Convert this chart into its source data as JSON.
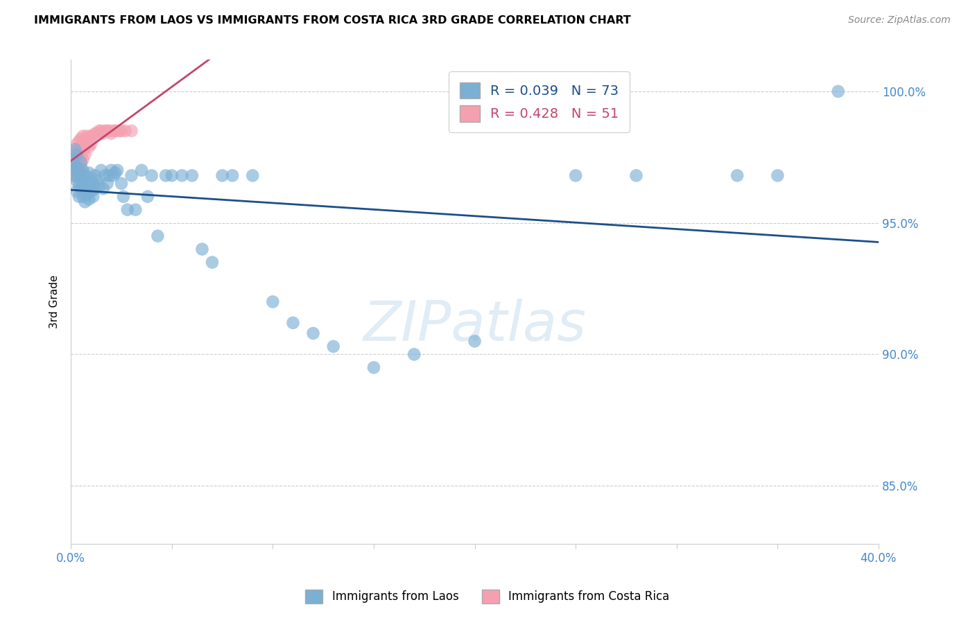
{
  "title": "IMMIGRANTS FROM LAOS VS IMMIGRANTS FROM COSTA RICA 3RD GRADE CORRELATION CHART",
  "source": "Source: ZipAtlas.com",
  "ylabel": "3rd Grade",
  "xmin": 0.0,
  "xmax": 0.4,
  "ymin": 0.828,
  "ymax": 1.012,
  "yticks": [
    0.85,
    0.9,
    0.95,
    1.0
  ],
  "ytick_labels": [
    "85.0%",
    "90.0%",
    "95.0%",
    "100.0%"
  ],
  "blue_R": 0.039,
  "blue_N": 73,
  "pink_R": 0.428,
  "pink_N": 51,
  "blue_color": "#7bafd4",
  "pink_color": "#f4a0b0",
  "blue_line_color": "#1a4f8a",
  "pink_line_color": "#c44569",
  "legend_label_blue": "Immigrants from Laos",
  "legend_label_pink": "Immigrants from Costa Rica",
  "blue_scatter_x": [
    0.001,
    0.001,
    0.002,
    0.002,
    0.002,
    0.003,
    0.003,
    0.003,
    0.003,
    0.004,
    0.004,
    0.004,
    0.005,
    0.005,
    0.005,
    0.006,
    0.006,
    0.006,
    0.007,
    0.007,
    0.007,
    0.008,
    0.008,
    0.009,
    0.009,
    0.009,
    0.01,
    0.01,
    0.011,
    0.011,
    0.012,
    0.012,
    0.013,
    0.014,
    0.015,
    0.016,
    0.017,
    0.018,
    0.019,
    0.02,
    0.021,
    0.022,
    0.023,
    0.025,
    0.026,
    0.028,
    0.03,
    0.032,
    0.035,
    0.038,
    0.04,
    0.043,
    0.047,
    0.05,
    0.055,
    0.06,
    0.065,
    0.07,
    0.075,
    0.08,
    0.09,
    0.1,
    0.11,
    0.12,
    0.13,
    0.15,
    0.17,
    0.2,
    0.25,
    0.28,
    0.33,
    0.35,
    0.38
  ],
  "blue_scatter_y": [
    0.974,
    0.97,
    0.978,
    0.972,
    0.968,
    0.976,
    0.971,
    0.966,
    0.962,
    0.969,
    0.964,
    0.96,
    0.973,
    0.967,
    0.963,
    0.97,
    0.965,
    0.96,
    0.968,
    0.963,
    0.958,
    0.966,
    0.961,
    0.969,
    0.964,
    0.959,
    0.967,
    0.962,
    0.965,
    0.96,
    0.968,
    0.963,
    0.966,
    0.964,
    0.97,
    0.963,
    0.968,
    0.965,
    0.968,
    0.97,
    0.968,
    0.969,
    0.97,
    0.965,
    0.96,
    0.955,
    0.968,
    0.955,
    0.97,
    0.96,
    0.968,
    0.945,
    0.968,
    0.968,
    0.968,
    0.968,
    0.94,
    0.935,
    0.968,
    0.968,
    0.968,
    0.92,
    0.912,
    0.908,
    0.903,
    0.895,
    0.9,
    0.905,
    0.968,
    0.968,
    0.968,
    0.968,
    1.0
  ],
  "pink_scatter_x": [
    0.001,
    0.001,
    0.001,
    0.002,
    0.002,
    0.002,
    0.002,
    0.003,
    0.003,
    0.003,
    0.003,
    0.003,
    0.004,
    0.004,
    0.004,
    0.004,
    0.004,
    0.005,
    0.005,
    0.005,
    0.005,
    0.005,
    0.006,
    0.006,
    0.006,
    0.006,
    0.007,
    0.007,
    0.007,
    0.008,
    0.008,
    0.009,
    0.009,
    0.01,
    0.01,
    0.011,
    0.012,
    0.013,
    0.014,
    0.015,
    0.016,
    0.017,
    0.018,
    0.019,
    0.02,
    0.021,
    0.022,
    0.024,
    0.025,
    0.027,
    0.03
  ],
  "pink_scatter_y": [
    0.974,
    0.971,
    0.968,
    0.977,
    0.974,
    0.971,
    0.968,
    0.98,
    0.977,
    0.974,
    0.971,
    0.968,
    0.981,
    0.978,
    0.975,
    0.972,
    0.969,
    0.982,
    0.979,
    0.976,
    0.973,
    0.97,
    0.983,
    0.98,
    0.977,
    0.974,
    0.982,
    0.979,
    0.976,
    0.983,
    0.98,
    0.982,
    0.979,
    0.983,
    0.98,
    0.983,
    0.984,
    0.984,
    0.985,
    0.985,
    0.984,
    0.985,
    0.985,
    0.985,
    0.984,
    0.985,
    0.985,
    0.985,
    0.985,
    0.985,
    0.985
  ],
  "background_color": "#ffffff",
  "grid_color": "#cccccc",
  "axis_color": "#cccccc",
  "tick_label_color": "#4488cc"
}
